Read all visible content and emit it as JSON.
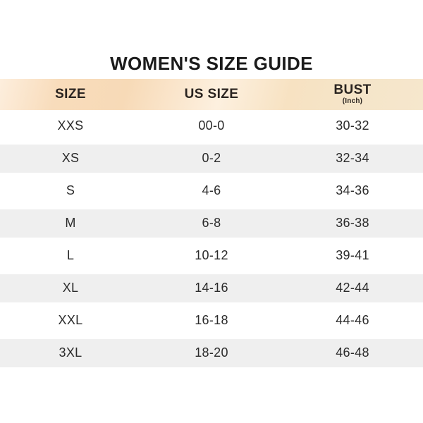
{
  "title": "WOMEN'S SIZE GUIDE",
  "table": {
    "columns": [
      {
        "label": "SIZE",
        "sub": ""
      },
      {
        "label": "US SIZE",
        "sub": ""
      },
      {
        "label": "BUST",
        "sub": "(Inch)"
      }
    ],
    "rows": [
      {
        "size": "XXS",
        "us_size": "00-0",
        "bust": "30-32"
      },
      {
        "size": "XS",
        "us_size": "0-2",
        "bust": "32-34"
      },
      {
        "size": "S",
        "us_size": "4-6",
        "bust": "34-36"
      },
      {
        "size": "M",
        "us_size": "6-8",
        "bust": "36-38"
      },
      {
        "size": "L",
        "us_size": "10-12",
        "bust": "39-41"
      },
      {
        "size": "XL",
        "us_size": "14-16",
        "bust": "42-44"
      },
      {
        "size": "XXL",
        "us_size": "16-18",
        "bust": "44-46"
      },
      {
        "size": "3XL",
        "us_size": "18-20",
        "bust": "46-48"
      }
    ]
  },
  "colors": {
    "title_text": "#1b1b1b",
    "header_text": "#2a2420",
    "cell_text": "#2b2b2b",
    "row_alt": "#efefef",
    "row_base": "#ffffff",
    "header_peach": "#f7dab7",
    "header_cream": "#fdf0df",
    "header_beige": "#f5e5c9"
  }
}
